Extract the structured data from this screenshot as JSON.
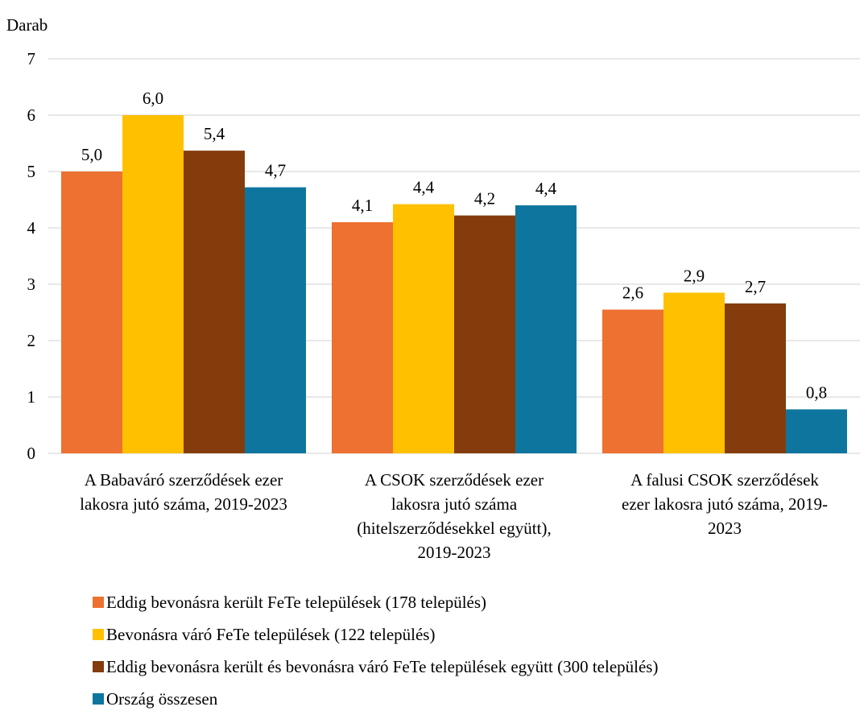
{
  "chart_data": {
    "type": "bar",
    "ylabel": "Darab",
    "ylim": [
      0,
      7
    ],
    "yticks": [
      "0",
      "1",
      "2",
      "3",
      "4",
      "5",
      "6",
      "7"
    ],
    "grid": true,
    "legend_position": "bottom",
    "categories": [
      [
        "A Babaváró szerződések ezer",
        "lakosra jutó száma, 2019-2023"
      ],
      [
        "A CSOK szerződések ezer",
        "lakosra jutó száma",
        "(hitelszerződésekkel együtt),",
        "2019-2023"
      ],
      [
        "A falusi CSOK szerződések",
        "ezer lakosra jutó száma, 2019-",
        "2023"
      ]
    ],
    "series": [
      {
        "name": "Eddig bevonásra került FeTe települések (178 település)",
        "color": "#ED7130",
        "values": [
          5.0,
          4.1,
          2.55
        ],
        "labels": [
          "5,0",
          "4,1",
          "2,6"
        ]
      },
      {
        "name": "Bevonásra váró FeTe települések (122 település)",
        "color": "#FFC000",
        "values": [
          6.0,
          4.42,
          2.85
        ],
        "labels": [
          "6,0",
          "4,4",
          "2,9"
        ]
      },
      {
        "name": "Eddig bevonásra került és bevonásra váró FeTe települések együtt (300 település)",
        "color": "#843C0C",
        "values": [
          5.37,
          4.22,
          2.66
        ],
        "labels": [
          "5,4",
          "4,2",
          "2,7"
        ]
      },
      {
        "name": "Ország összesen",
        "color": "#0E769E",
        "values": [
          4.72,
          4.4,
          0.78
        ],
        "labels": [
          "4,7",
          "4,4",
          "0,8"
        ]
      }
    ]
  }
}
